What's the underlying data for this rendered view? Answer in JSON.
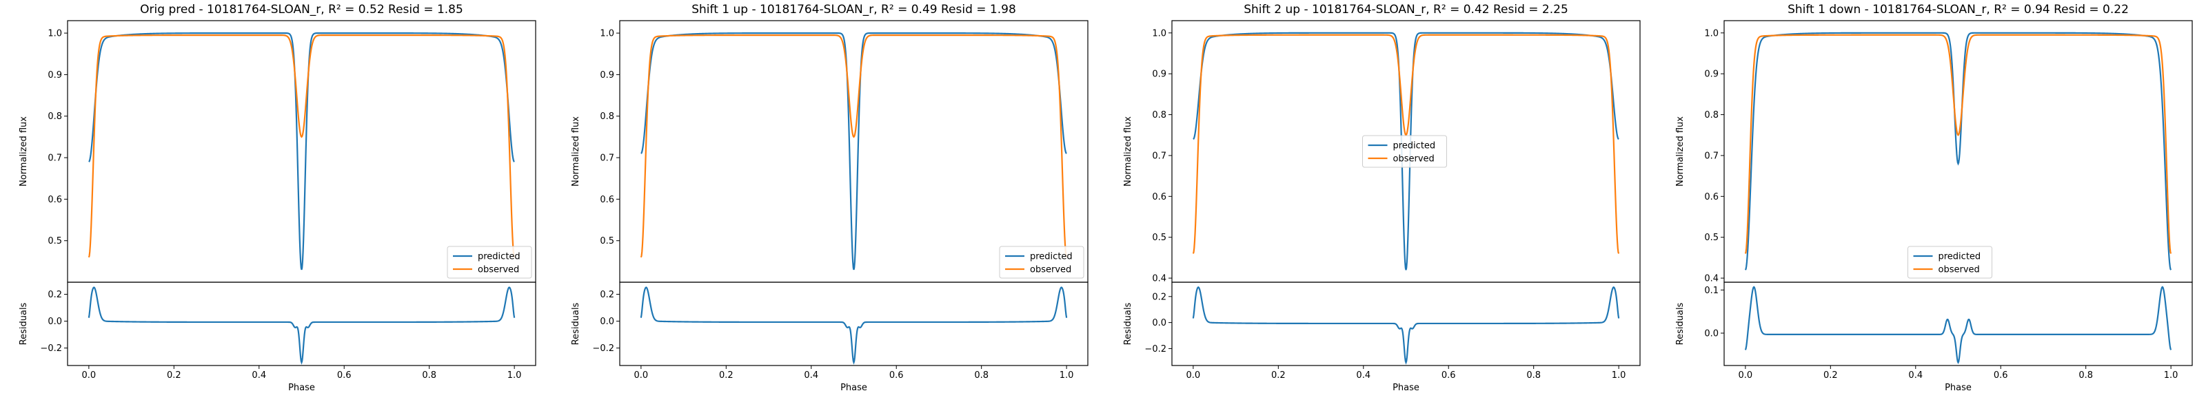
{
  "figure": {
    "colors": {
      "predicted": "#1f77b4",
      "observed": "#ff7f0e",
      "axis": "#000000",
      "legend_border": "#cccccc"
    }
  },
  "chart_data": [
    {
      "type": "line",
      "title": "Orig pred - 10181764-SLOAN_r, R² = 0.52 Resid = 1.85",
      "xlabel": "Phase",
      "ylabel_top": "Normalized flux",
      "ylabel_bottom": "Residuals",
      "legend": {
        "placement": "lower right",
        "entries": [
          "predicted",
          "observed"
        ]
      },
      "grid": false,
      "top": {
        "ylim": [
          0.4,
          1.03
        ],
        "yticks": [
          0.5,
          0.6,
          0.7,
          0.8,
          0.9,
          1.0
        ],
        "ytick_labels": [
          "0.5",
          "0.6",
          "0.7",
          "0.8",
          "0.9",
          "1.0"
        ],
        "predicted": {
          "edge_value": 0.69,
          "secondary_min": 0.43
        },
        "observed": {
          "edge_value": 0.46,
          "secondary_min": 0.75,
          "plateau": 0.995
        }
      },
      "bottom": {
        "ylim": [
          -0.33,
          0.29
        ],
        "yticks": [
          -0.2,
          0.0,
          0.2
        ],
        "ytick_labels": [
          "−0.2",
          "0.0",
          "0.2"
        ],
        "edge_peak": 0.25,
        "center_min": -0.3
      },
      "xlim": [
        -0.05,
        1.05
      ],
      "xticks": [
        0.0,
        0.2,
        0.4,
        0.6,
        0.8,
        1.0
      ],
      "xtick_labels": [
        "0.0",
        "0.2",
        "0.4",
        "0.6",
        "0.8",
        "1.0"
      ]
    },
    {
      "type": "line",
      "title": "Shift 1 up - 10181764-SLOAN_r, R² = 0.49 Resid = 1.98",
      "xlabel": "Phase",
      "ylabel_top": "Normalized flux",
      "ylabel_bottom": "Residuals",
      "legend": {
        "placement": "lower right",
        "entries": [
          "predicted",
          "observed"
        ]
      },
      "grid": false,
      "top": {
        "ylim": [
          0.4,
          1.03
        ],
        "yticks": [
          0.5,
          0.6,
          0.7,
          0.8,
          0.9,
          1.0
        ],
        "ytick_labels": [
          "0.5",
          "0.6",
          "0.7",
          "0.8",
          "0.9",
          "1.0"
        ],
        "predicted": {
          "edge_value": 0.71,
          "secondary_min": 0.43
        },
        "observed": {
          "edge_value": 0.46,
          "secondary_min": 0.75,
          "plateau": 0.995
        }
      },
      "bottom": {
        "ylim": [
          -0.33,
          0.29
        ],
        "yticks": [
          -0.2,
          0.0,
          0.2
        ],
        "ytick_labels": [
          "−0.2",
          "0.0",
          "0.2"
        ],
        "edge_peak": 0.25,
        "center_min": -0.3
      },
      "xlim": [
        -0.05,
        1.05
      ],
      "xticks": [
        0.0,
        0.2,
        0.4,
        0.6,
        0.8,
        1.0
      ],
      "xtick_labels": [
        "0.0",
        "0.2",
        "0.4",
        "0.6",
        "0.8",
        "1.0"
      ]
    },
    {
      "type": "line",
      "title": "Shift 2 up - 10181764-SLOAN_r, R² = 0.42 Resid = 2.25",
      "xlabel": "Phase",
      "ylabel_top": "Normalized flux",
      "ylabel_bottom": "Residuals",
      "legend": {
        "placement": "center",
        "entries": [
          "predicted",
          "observed"
        ]
      },
      "grid": false,
      "top": {
        "ylim": [
          0.39,
          1.03
        ],
        "yticks": [
          0.4,
          0.5,
          0.6,
          0.7,
          0.8,
          0.9,
          1.0
        ],
        "ytick_labels": [
          "0.4",
          "0.5",
          "0.6",
          "0.7",
          "0.8",
          "0.9",
          "1.0"
        ],
        "predicted": {
          "edge_value": 0.74,
          "secondary_min": 0.42
        },
        "observed": {
          "edge_value": 0.46,
          "secondary_min": 0.75,
          "plateau": 0.995
        }
      },
      "bottom": {
        "ylim": [
          -0.33,
          0.31
        ],
        "yticks": [
          -0.2,
          0.0,
          0.2
        ],
        "ytick_labels": [
          "−0.2",
          "0.0",
          "0.2"
        ],
        "edge_peak": 0.27,
        "center_min": -0.3
      },
      "xlim": [
        -0.05,
        1.05
      ],
      "xticks": [
        0.0,
        0.2,
        0.4,
        0.6,
        0.8,
        1.0
      ],
      "xtick_labels": [
        "0.0",
        "0.2",
        "0.4",
        "0.6",
        "0.8",
        "1.0"
      ]
    },
    {
      "type": "line",
      "title": "Shift 1 down - 10181764-SLOAN_r, R² = 0.94 Resid = 0.22",
      "xlabel": "Phase",
      "ylabel_top": "Normalized flux",
      "ylabel_bottom": "Residuals",
      "legend": {
        "placement": "lower center",
        "entries": [
          "predicted",
          "observed"
        ]
      },
      "grid": false,
      "top": {
        "ylim": [
          0.39,
          1.03
        ],
        "yticks": [
          0.4,
          0.5,
          0.6,
          0.7,
          0.8,
          0.9,
          1.0
        ],
        "ytick_labels": [
          "0.4",
          "0.5",
          "0.6",
          "0.7",
          "0.8",
          "0.9",
          "1.0"
        ],
        "predicted": {
          "edge_value": 0.42,
          "secondary_min": 0.68
        },
        "observed": {
          "edge_value": 0.46,
          "secondary_min": 0.75,
          "plateau": 0.995
        }
      },
      "bottom": {
        "ylim": [
          -0.075,
          0.118
        ],
        "yticks": [
          0.0,
          0.1
        ],
        "ytick_labels": [
          "0.0",
          "0.1"
        ],
        "edge_peak": 0.11,
        "center_min": -0.065,
        "pattern": "shift_down"
      },
      "xlim": [
        -0.05,
        1.05
      ],
      "xticks": [
        0.0,
        0.2,
        0.4,
        0.6,
        0.8,
        1.0
      ],
      "xtick_labels": [
        "0.0",
        "0.2",
        "0.4",
        "0.6",
        "0.8",
        "1.0"
      ]
    }
  ]
}
